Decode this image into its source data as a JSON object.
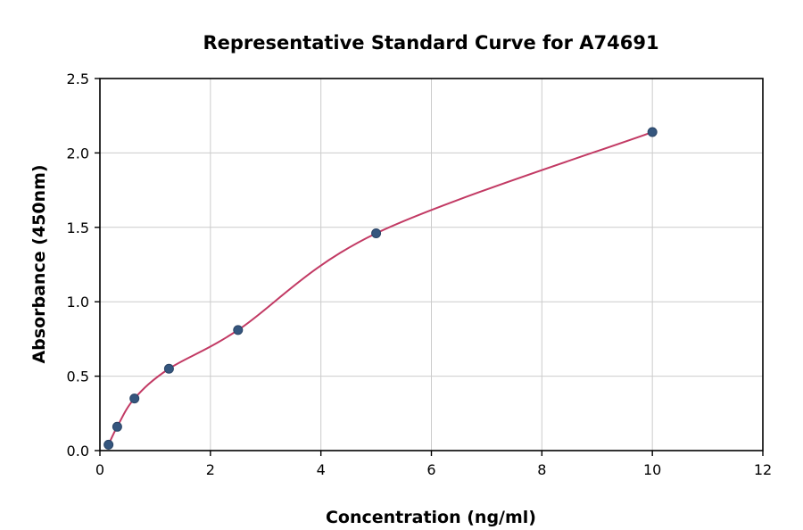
{
  "chart_data": {
    "type": "scatter",
    "title": "Representative Standard Curve for A74691",
    "xlabel": "Concentration (ng/ml)",
    "ylabel": "Absorbance (450nm)",
    "xlim": [
      0,
      12
    ],
    "ylim": [
      0,
      2.5
    ],
    "x_ticks": [
      0,
      2,
      4,
      6,
      8,
      10,
      12
    ],
    "x_tick_labels": [
      "0",
      "2",
      "4",
      "6",
      "8",
      "10",
      "12"
    ],
    "y_ticks": [
      0,
      0.5,
      1.0,
      1.5,
      2.0,
      2.5
    ],
    "y_tick_labels": [
      "0.0",
      "0.5",
      "1.0",
      "1.5",
      "2.0",
      "2.5"
    ],
    "grid": true,
    "legend": "none",
    "points": {
      "x": [
        0.156,
        0.313,
        0.625,
        1.25,
        2.5,
        5,
        10
      ],
      "y": [
        0.04,
        0.16,
        0.35,
        0.55,
        0.81,
        1.46,
        2.14
      ]
    },
    "fit_curve": "smooth curve through standard points",
    "colors": {
      "point": "#35567E",
      "point_edge": "#2A4466",
      "curve": "#C23A64",
      "grid": "#CCCCCC",
      "axis": "#000000",
      "background": "#FFFFFF"
    }
  }
}
